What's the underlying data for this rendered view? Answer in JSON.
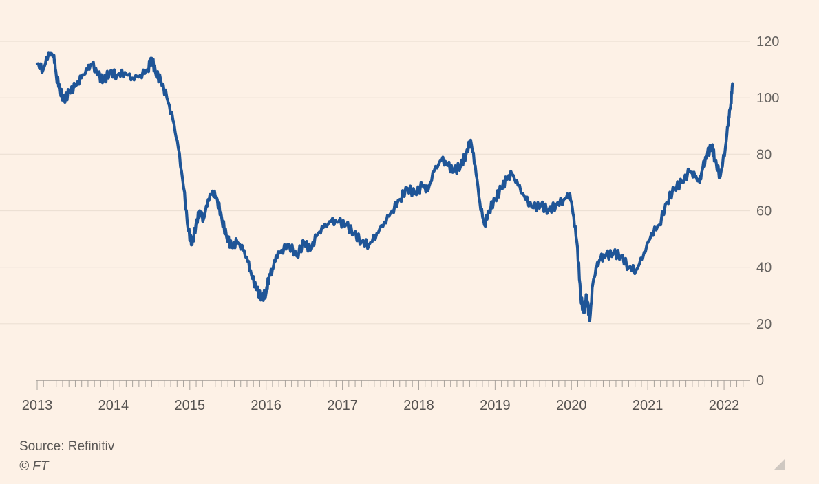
{
  "chart_data": {
    "type": "line",
    "title": "",
    "xlabel": "",
    "ylabel": "",
    "x_ticks": [
      "2013",
      "2014",
      "2015",
      "2016",
      "2017",
      "2018",
      "2019",
      "2020",
      "2021",
      "2022"
    ],
    "y_ticks": [
      "0",
      "20",
      "40",
      "60",
      "80",
      "100",
      "120"
    ],
    "xlim": [
      2013.0,
      2022.27
    ],
    "ylim": [
      0,
      120
    ],
    "grid": true,
    "line_color": "#1f5597",
    "series": [
      {
        "x": [
          2013.0,
          2013.08,
          2013.15,
          2013.22,
          2013.25,
          2013.3,
          2013.35,
          2013.42,
          2013.5,
          2013.58,
          2013.66,
          2013.72,
          2013.8,
          2013.87,
          2013.95,
          2014.05,
          2014.15,
          2014.25,
          2014.35,
          2014.45,
          2014.5,
          2014.55,
          2014.62,
          2014.7,
          2014.78,
          2014.85,
          2014.92,
          2014.98,
          2015.03,
          2015.08,
          2015.13,
          2015.18,
          2015.24,
          2015.3,
          2015.36,
          2015.42,
          2015.48,
          2015.55,
          2015.62,
          2015.7,
          2015.76,
          2015.82,
          2015.88,
          2015.94,
          2016.0,
          2016.04,
          2016.08,
          2016.13,
          2016.2,
          2016.3,
          2016.4,
          2016.5,
          2016.58,
          2016.66,
          2016.75,
          2016.85,
          2016.95,
          2017.05,
          2017.15,
          2017.25,
          2017.35,
          2017.45,
          2017.55,
          2017.65,
          2017.75,
          2017.85,
          2017.95,
          2018.05,
          2018.12,
          2018.2,
          2018.3,
          2018.38,
          2018.46,
          2018.55,
          2018.62,
          2018.68,
          2018.74,
          2018.8,
          2018.86,
          2018.92,
          2019.0,
          2019.08,
          2019.15,
          2019.22,
          2019.3,
          2019.4,
          2019.5,
          2019.6,
          2019.7,
          2019.8,
          2019.9,
          2019.98,
          2020.03,
          2020.08,
          2020.12,
          2020.16,
          2020.2,
          2020.24,
          2020.28,
          2020.33,
          2020.38,
          2020.45,
          2020.55,
          2020.65,
          2020.75,
          2020.85,
          2020.95,
          2021.05,
          2021.15,
          2021.25,
          2021.35,
          2021.45,
          2021.55,
          2021.62,
          2021.68,
          2021.72,
          2021.78,
          2021.84,
          2021.88,
          2021.95,
          2022.02,
          2022.06,
          2022.09,
          2022.11
        ],
        "values": [
          112,
          110,
          116,
          115,
          108,
          103,
          99,
          102,
          104,
          107,
          110,
          112,
          108,
          106,
          109,
          108,
          109,
          107,
          108,
          110,
          114,
          109,
          106,
          100,
          92,
          82,
          68,
          53,
          48,
          55,
          60,
          57,
          64,
          67,
          64,
          57,
          51,
          47,
          49,
          46,
          42,
          36,
          32,
          29,
          31,
          37,
          39,
          44,
          46,
          48,
          44,
          49,
          46,
          51,
          54,
          56,
          56,
          55,
          52,
          49,
          48,
          52,
          56,
          60,
          64,
          68,
          66,
          69,
          67,
          74,
          78,
          76,
          74,
          76,
          80,
          85,
          76,
          63,
          55,
          60,
          64,
          68,
          71,
          73,
          69,
          64,
          61,
          62,
          60,
          62,
          64,
          66,
          58,
          47,
          30,
          24,
          30,
          21,
          34,
          40,
          43,
          44,
          45,
          44,
          40,
          39,
          45,
          52,
          55,
          63,
          68,
          70,
          74,
          72,
          70,
          75,
          80,
          83,
          78,
          72,
          83,
          93,
          98,
          105
        ]
      }
    ]
  },
  "footer": {
    "source": "Source: Refinitiv",
    "copyright": "© FT"
  },
  "icons": {
    "corner": "resize-corner-icon"
  }
}
